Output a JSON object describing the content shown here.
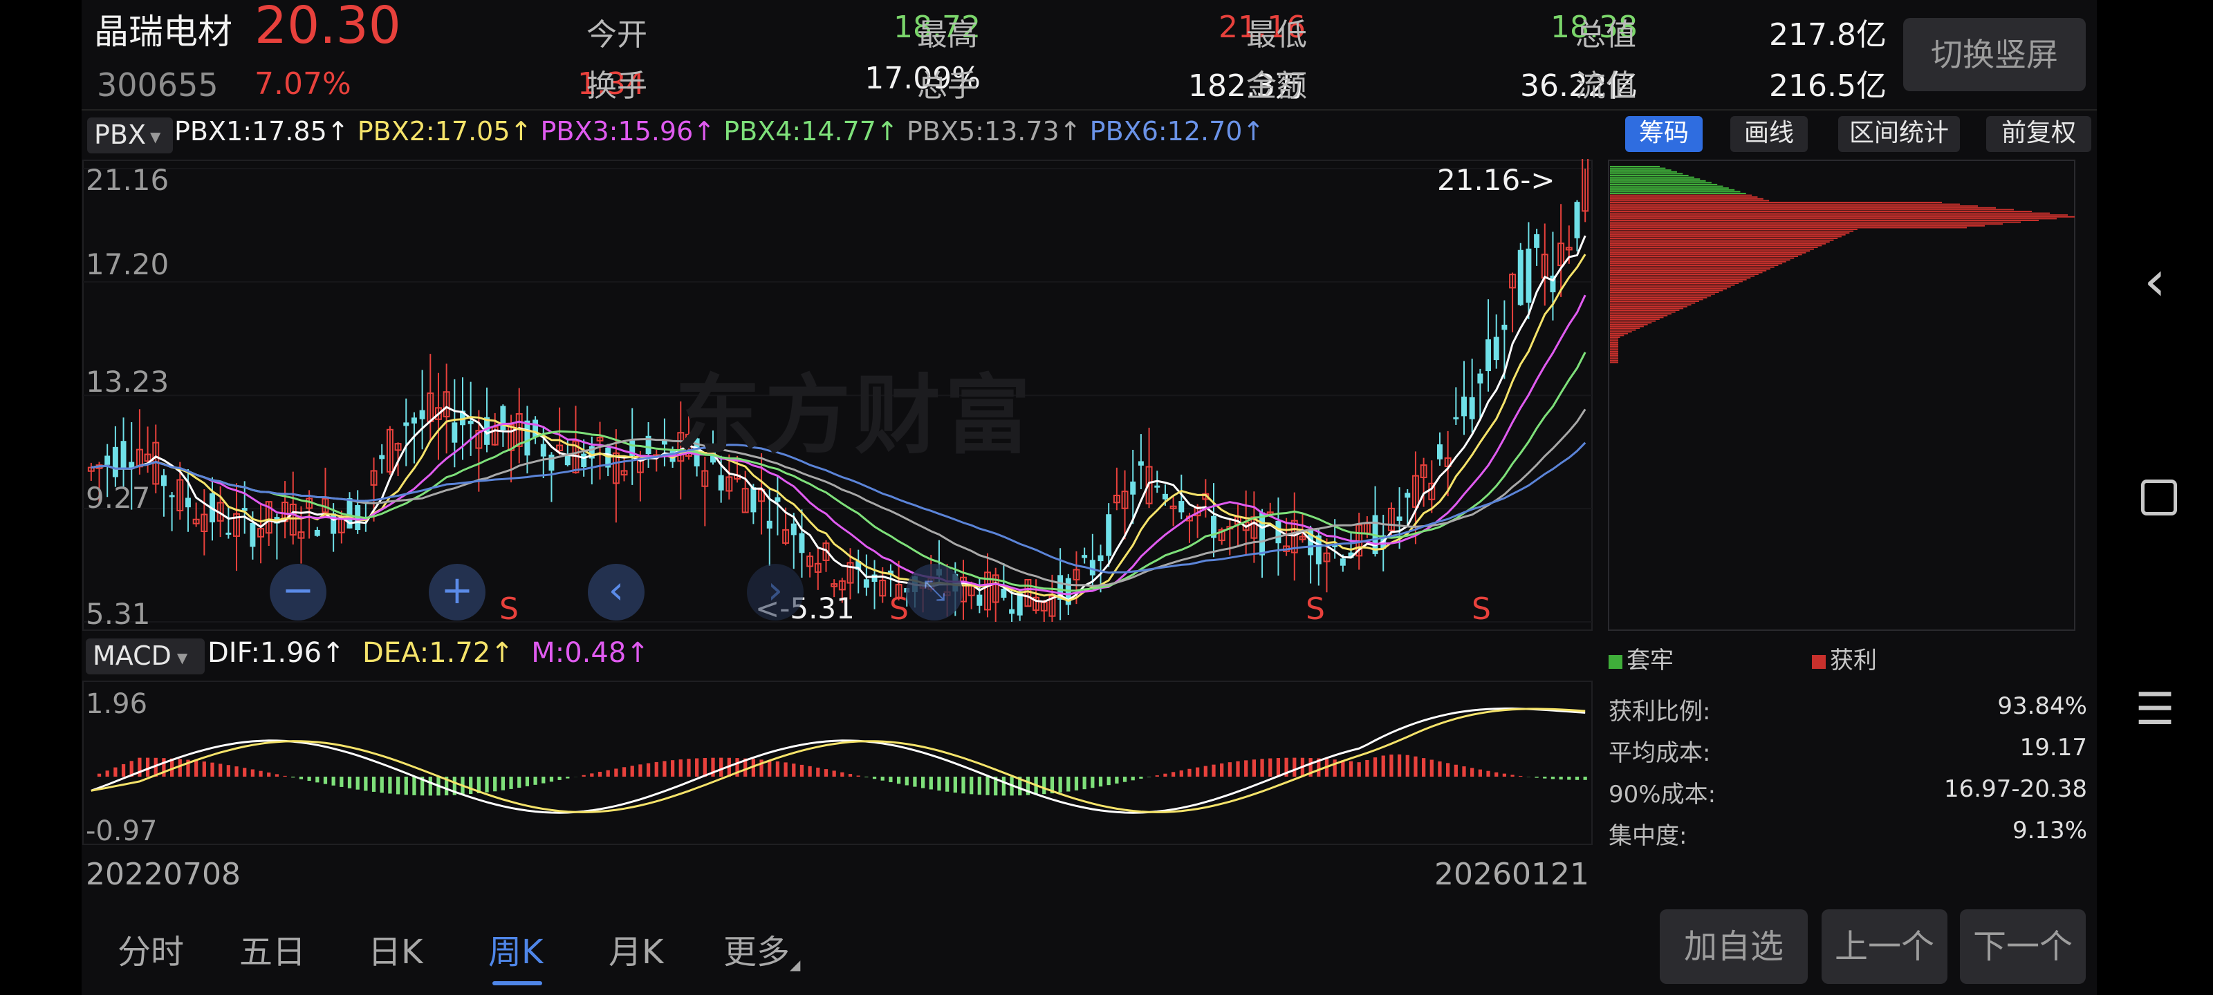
{
  "stock": {
    "name": "晶瑞电材",
    "price": "20.30",
    "code": "300655",
    "change_pct": "7.07%",
    "change_amt": "1.34"
  },
  "quote": {
    "open_label": "今开",
    "open": "18.72",
    "high_label": "最高",
    "high": "21.16",
    "low_label": "最低",
    "low": "18.38",
    "total_mv_label": "总值",
    "total_mv": "217.8亿",
    "turnover_label": "换手",
    "turnover": "17.09%",
    "volume_label": "总手",
    "volume": "182.3万",
    "amount_label": "金额",
    "amount": "36.22亿",
    "float_mv_label": "流值",
    "float_mv": "216.5亿"
  },
  "switch_screen_label": "切换竖屏",
  "indicator_bar": {
    "selector": "PBX",
    "pbx1": "PBX1:17.85",
    "pbx2": "PBX2:17.05",
    "pbx3": "PBX3:15.96",
    "pbx4": "PBX4:14.77",
    "pbx5": "PBX5:13.73",
    "pbx6": "PBX6:12.70",
    "arrow": "↑"
  },
  "right_tabs": [
    "筹码",
    "画线",
    "区间统计",
    "前复权"
  ],
  "colors": {
    "up": "#e8413c",
    "down": "#6fe0e8",
    "pbx1": "#ffffff",
    "pbx2": "#f5e36a",
    "pbx3": "#e05bf0",
    "pbx4": "#7ee07a",
    "pbx5": "#a8a8a8",
    "pbx6": "#5b84d8",
    "profit": "#c8302c",
    "trapped": "#3fae3a",
    "accent": "#2f6de0"
  },
  "main_chart": {
    "y_ticks": [
      "21.16",
      "17.20",
      "13.23",
      "9.27",
      "5.31"
    ],
    "high_annotation": "21.16->",
    "low_annotation": "<-5.31",
    "watermark": "东方财富",
    "signal": "S"
  },
  "macd": {
    "selector": "MACD",
    "dif": "DIF:1.96",
    "dea": "DEA:1.72",
    "m": "M:0.48",
    "arrow": "↑",
    "y_top": "1.96",
    "y_bottom": "-0.97"
  },
  "dates": {
    "start": "20220708",
    "end": "20260121"
  },
  "chips": {
    "legend_trapped": "套牢",
    "legend_profit": "获利",
    "stats": [
      {
        "label": "获利比例:",
        "value": "93.84%"
      },
      {
        "label": "平均成本:",
        "value": "19.17"
      },
      {
        "label": "90%成本:",
        "value": "16.97-20.38"
      },
      {
        "label": "集中度:",
        "value": "9.13%"
      }
    ]
  },
  "period_tabs": [
    "分时",
    "五日",
    "日K",
    "周K",
    "月K",
    "更多"
  ],
  "active_period": "周K",
  "bottom_buttons": {
    "add": "加自选",
    "prev": "上一个",
    "next": "下一个"
  },
  "nav_icons": [
    "back-icon",
    "home-icon",
    "menu-icon"
  ]
}
